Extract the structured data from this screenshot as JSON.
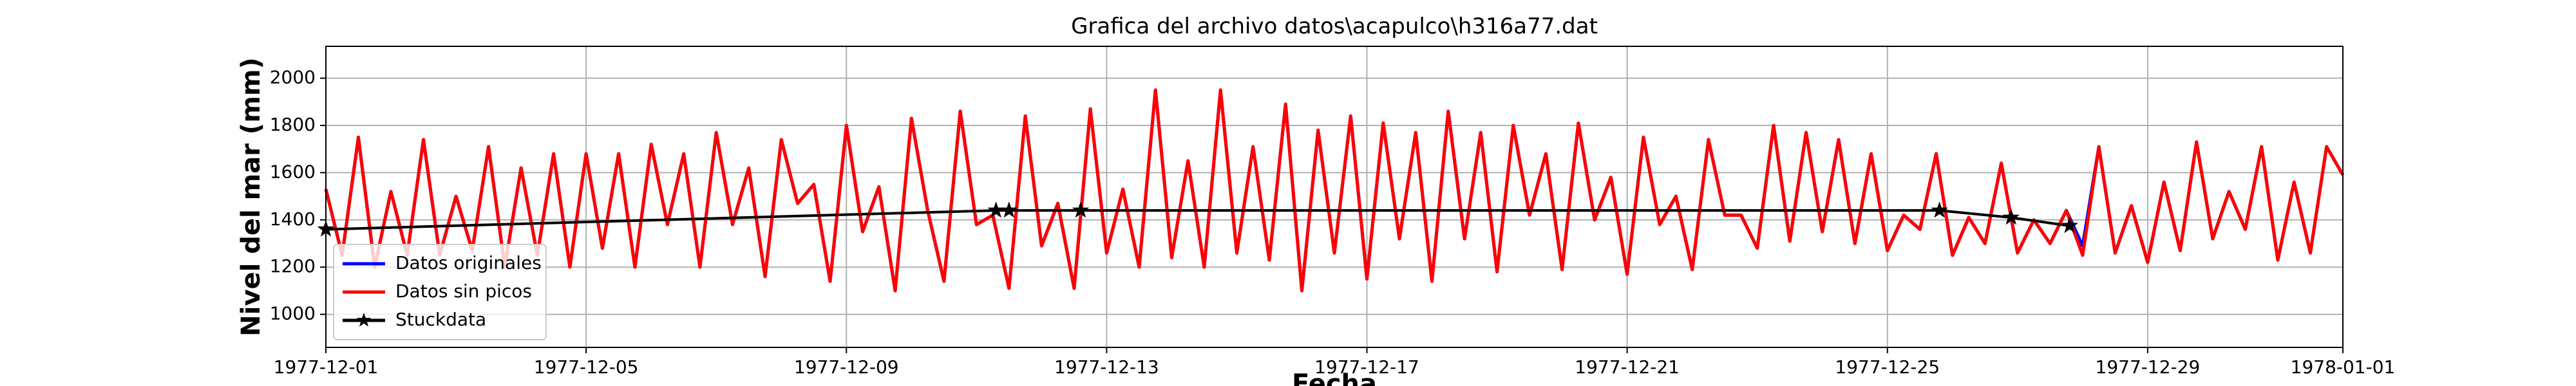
{
  "chart_data": {
    "type": "line",
    "title": "Grafica del archivo datos\\acapulco\\h316a77.dat",
    "xlabel": "Fecha",
    "ylabel": "Nivel del mar (mm)",
    "xlim": [
      0,
      31
    ],
    "xticks": [
      {
        "value": 0,
        "label": "1977-12-01"
      },
      {
        "value": 4,
        "label": "1977-12-05"
      },
      {
        "value": 8,
        "label": "1977-12-09"
      },
      {
        "value": 12,
        "label": "1977-12-13"
      },
      {
        "value": 16,
        "label": "1977-12-17"
      },
      {
        "value": 20,
        "label": "1977-12-21"
      },
      {
        "value": 24,
        "label": "1977-12-25"
      },
      {
        "value": 28,
        "label": "1977-12-29"
      },
      {
        "value": 31,
        "label": "1978-01-01"
      }
    ],
    "ylim": [
      860,
      2135
    ],
    "yticks": [
      1000,
      1200,
      1400,
      1600,
      1800,
      2000
    ],
    "grid": true,
    "legend": "lower left",
    "x": [
      0,
      0.25,
      0.5,
      0.75,
      1,
      1.25,
      1.5,
      1.75,
      2,
      2.25,
      2.5,
      2.75,
      3,
      3.25,
      3.5,
      3.75,
      4,
      4.25,
      4.5,
      4.75,
      5,
      5.25,
      5.5,
      5.75,
      6,
      6.25,
      6.5,
      6.75,
      7,
      7.25,
      7.5,
      7.75,
      8,
      8.25,
      8.5,
      8.75,
      9,
      9.25,
      9.5,
      9.75,
      10,
      10.25,
      10.5,
      10.75,
      11,
      11.25,
      11.5,
      11.75,
      12,
      12.25,
      12.5,
      12.75,
      13,
      13.25,
      13.5,
      13.75,
      14,
      14.25,
      14.5,
      14.75,
      15,
      15.25,
      15.5,
      15.75,
      16,
      16.25,
      16.5,
      16.75,
      17,
      17.25,
      17.5,
      17.75,
      18,
      18.25,
      18.5,
      18.75,
      19,
      19.25,
      19.5,
      19.75,
      20,
      20.25,
      20.5,
      20.75,
      21,
      21.25,
      21.5,
      21.75,
      22,
      22.25,
      22.5,
      22.75,
      23,
      23.25,
      23.5,
      23.75,
      24,
      24.25,
      24.5,
      24.75,
      25,
      25.25,
      25.5,
      25.75,
      26,
      26.25,
      26.5,
      26.75,
      27,
      27.25,
      27.5,
      27.75,
      28,
      28.25,
      28.5,
      28.75,
      29,
      29.25,
      29.5,
      29.75,
      30,
      30.25,
      30.5,
      30.75,
      31
    ],
    "series": [
      {
        "name": "Datos originales",
        "color": "#0000ff",
        "values": [
          1530,
          1250,
          1750,
          1200,
          1520,
          1250,
          1740,
          1250,
          1500,
          1270,
          1710,
          1200,
          1620,
          1250,
          1680,
          1200,
          1680,
          1280,
          1680,
          1200,
          1720,
          1380,
          1680,
          1200,
          1770,
          1380,
          1620,
          1160,
          1740,
          1470,
          1550,
          1140,
          1800,
          1350,
          1540,
          1100,
          1830,
          1440,
          1140,
          1860,
          1380,
          1420,
          1110,
          1840,
          1290,
          1470,
          1110,
          1870,
          1260,
          1530,
          1200,
          1950,
          1240,
          1650,
          1200,
          1950,
          1260,
          1710,
          1230,
          1890,
          1100,
          1780,
          1260,
          1840,
          1150,
          1810,
          1320,
          1770,
          1140,
          1860,
          1320,
          1770,
          1180,
          1800,
          1420,
          1680,
          1190,
          1810,
          1400,
          1580,
          1170,
          1750,
          1380,
          1500,
          1190,
          1740,
          1420,
          1420,
          1280,
          1800,
          1310,
          1770,
          1350,
          1740,
          1300,
          1680,
          1270,
          1420,
          1360,
          1680,
          1250,
          1410,
          1300,
          1640,
          1260,
          1400,
          1300,
          1440,
          1290,
          1710,
          1260,
          1460,
          1220,
          1560,
          1270,
          1730,
          1320,
          1520,
          1360,
          1710,
          1230,
          1560,
          1260,
          1710,
          1590
        ]
      },
      {
        "name": "Datos sin picos",
        "color": "#ff0000",
        "values": [
          1530,
          1250,
          1750,
          1200,
          1520,
          1250,
          1740,
          1250,
          1500,
          1270,
          1710,
          1200,
          1620,
          1250,
          1680,
          1200,
          1680,
          1280,
          1680,
          1200,
          1720,
          1380,
          1680,
          1200,
          1770,
          1380,
          1620,
          1160,
          1740,
          1470,
          1550,
          1140,
          1800,
          1350,
          1540,
          1100,
          1830,
          1440,
          1140,
          1860,
          1380,
          1420,
          1110,
          1840,
          1290,
          1470,
          1110,
          1870,
          1260,
          1530,
          1200,
          1950,
          1240,
          1650,
          1200,
          1950,
          1260,
          1710,
          1230,
          1890,
          1100,
          1780,
          1260,
          1840,
          1150,
          1810,
          1320,
          1770,
          1140,
          1860,
          1320,
          1770,
          1180,
          1800,
          1420,
          1680,
          1190,
          1810,
          1400,
          1580,
          1170,
          1750,
          1380,
          1500,
          1190,
          1740,
          1420,
          1420,
          1280,
          1800,
          1310,
          1770,
          1350,
          1740,
          1300,
          1680,
          1270,
          1420,
          1360,
          1680,
          1250,
          1410,
          1300,
          1640,
          1260,
          1400,
          1300,
          1440,
          1250,
          1710,
          1260,
          1460,
          1220,
          1560,
          1270,
          1730,
          1320,
          1520,
          1360,
          1710,
          1230,
          1560,
          1260,
          1710,
          1590
        ]
      },
      {
        "name": "Stuckdata",
        "color": "#000000",
        "marker": "star",
        "x": [
          0,
          10.3,
          10.5,
          11.6,
          24.8,
          25.9,
          26.8
        ],
        "values": [
          1360,
          1440,
          1440,
          1440,
          1440,
          1410,
          1375
        ]
      }
    ]
  }
}
